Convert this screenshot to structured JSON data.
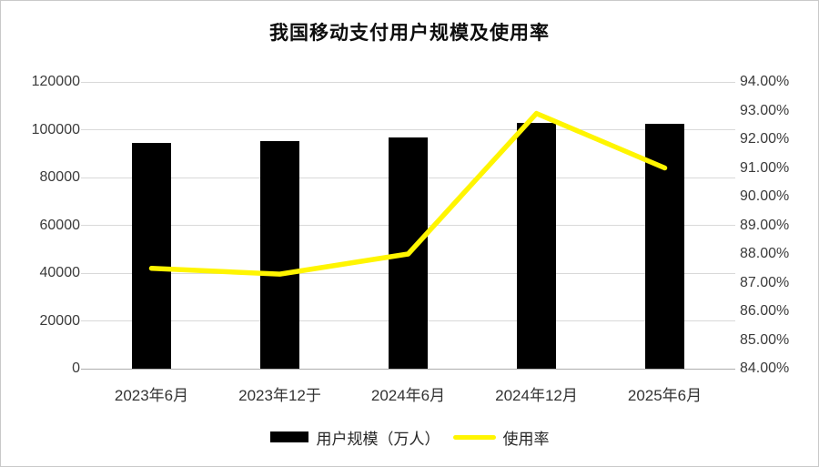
{
  "chart_data": {
    "type": "bar+line combo",
    "title": "我国移动支付用户规模及使用率",
    "categories": [
      "2023年6月",
      "2023年12于",
      "2024年6月",
      "2024年12月",
      "2025年6月"
    ],
    "series": [
      {
        "name": "用户规模（万人）",
        "type": "bar",
        "axis": "left",
        "color": "#000000",
        "values": [
          94300,
          95400,
          96900,
          102900,
          102400
        ]
      },
      {
        "name": "使用率",
        "type": "line",
        "axis": "right",
        "color": "#FFF500",
        "values": [
          87.5,
          87.3,
          88.0,
          92.9,
          91.0
        ]
      }
    ],
    "left_axis": {
      "min": 0,
      "max": 120000,
      "step": 20000,
      "tick_labels": [
        "0",
        "20000",
        "40000",
        "60000",
        "80000",
        "100000",
        "120000"
      ]
    },
    "right_axis": {
      "min": 84,
      "max": 94,
      "step": 1,
      "tick_labels": [
        "84.00%",
        "85.00%",
        "86.00%",
        "87.00%",
        "88.00%",
        "89.00%",
        "90.00%",
        "91.00%",
        "92.00%",
        "93.00%",
        "94.00%"
      ]
    },
    "grid": "horizontal gridlines at left-axis ticks",
    "legend_position": "bottom",
    "background": "#ffffff"
  }
}
